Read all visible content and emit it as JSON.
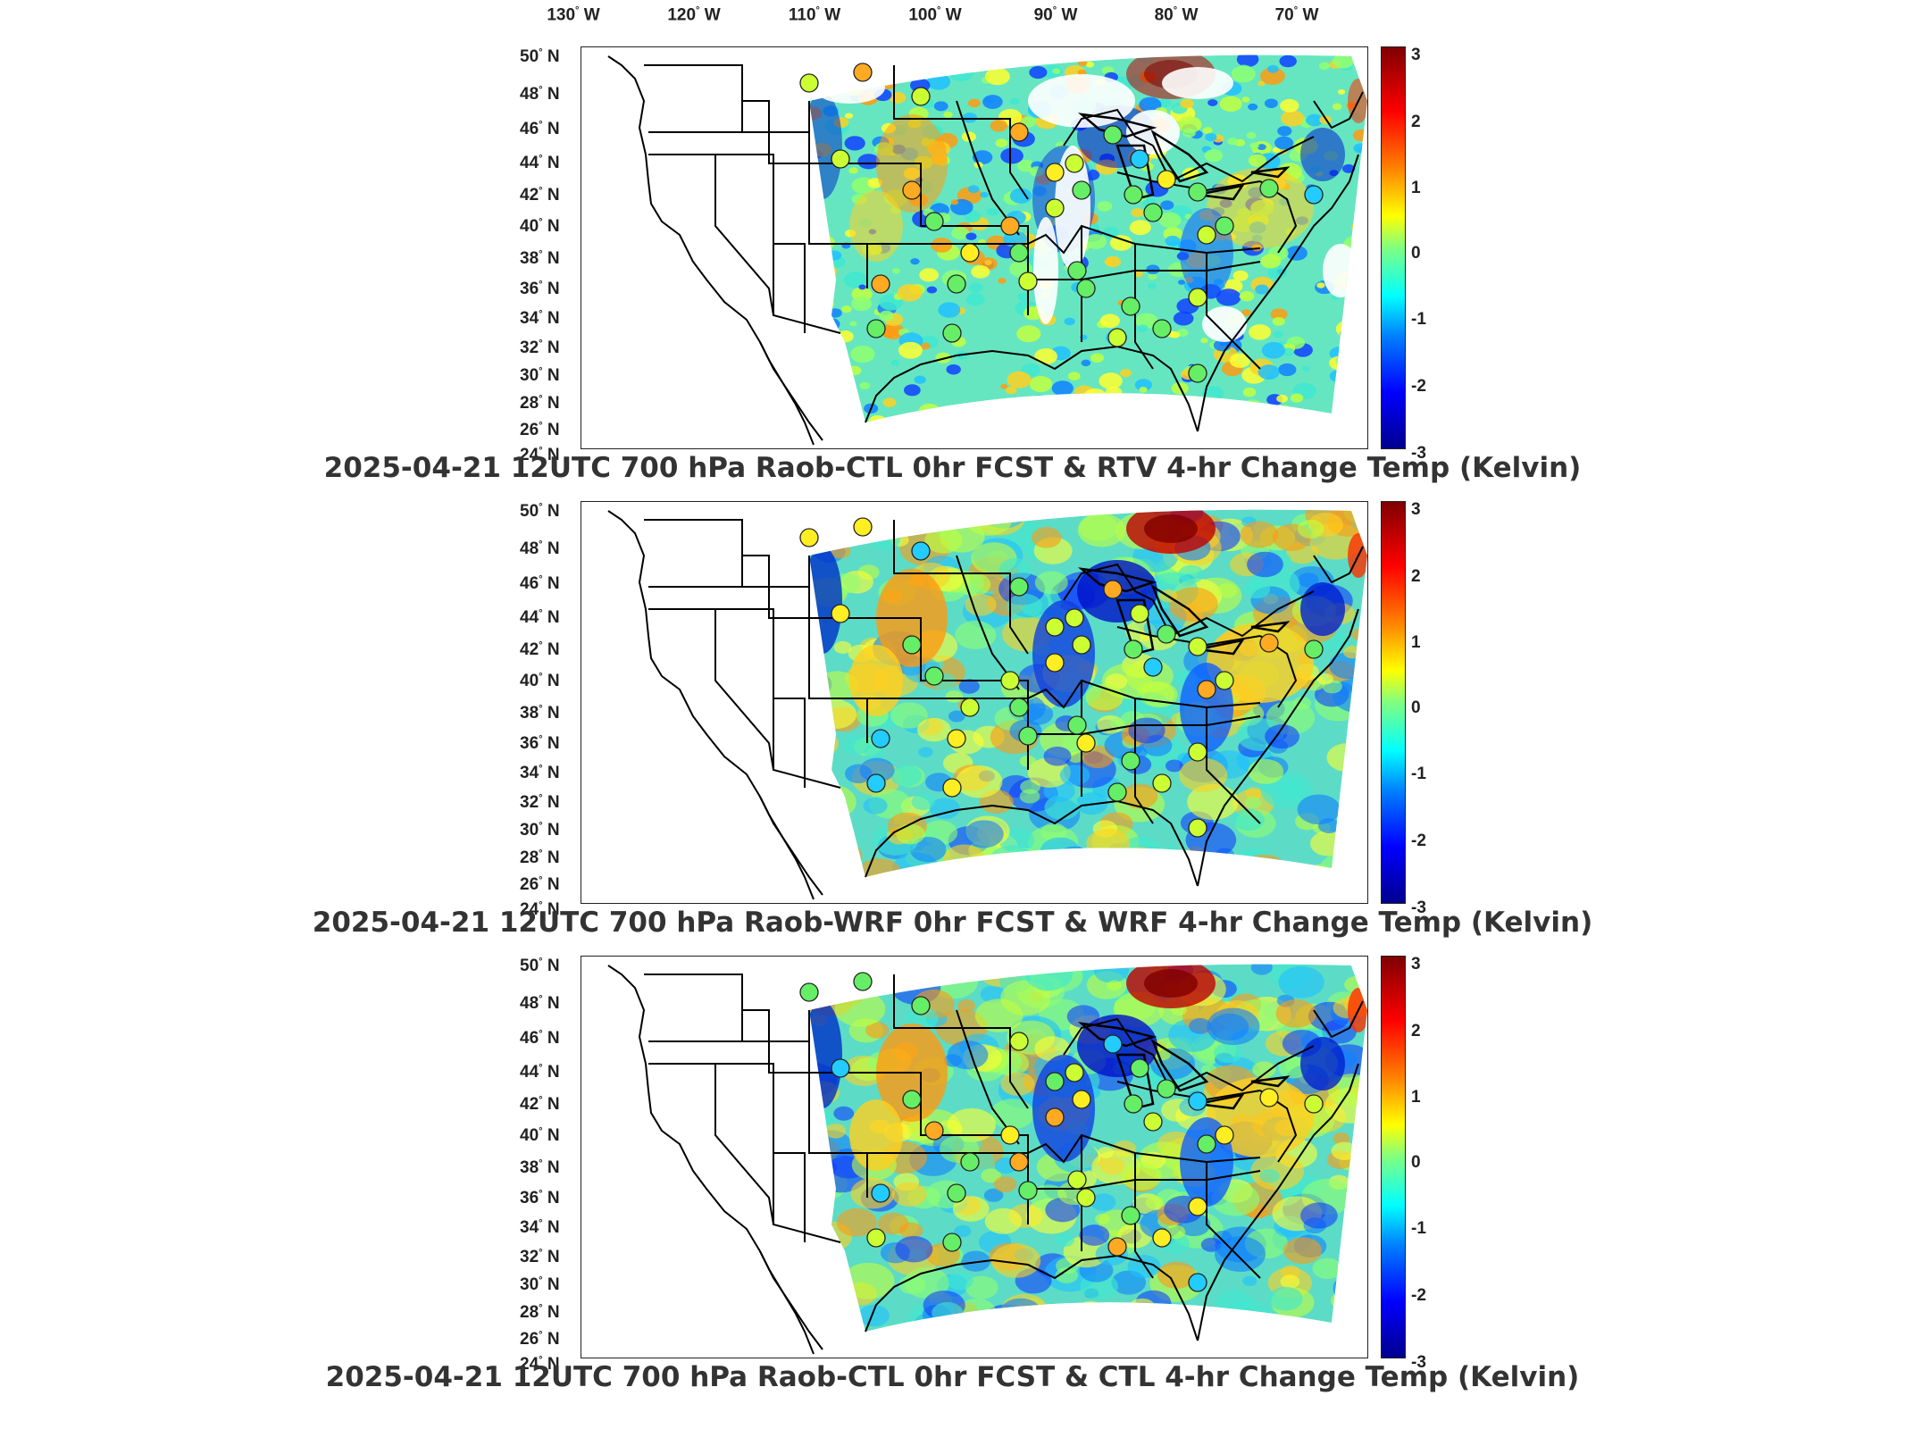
{
  "lon_labels": [
    "130",
    "120",
    "110",
    "100",
    "90",
    "80",
    "70"
  ],
  "lon_suffix": "W",
  "lat_labels": [
    "50",
    "48",
    "46",
    "44",
    "42",
    "40",
    "38",
    "36",
    "34",
    "32",
    "30",
    "28",
    "26",
    "24"
  ],
  "lat_suffix": "N",
  "colorbar_ticks": [
    "3",
    "2",
    "1",
    "0",
    "-1",
    "-2",
    "-3"
  ],
  "colorbar_range": [
    -3,
    3
  ],
  "colormap": "jet",
  "panels": [
    {
      "title": "2025-04-21 12UTC 700 hPa Raob-CTL 0hr FCST & RTV 4-hr Change Temp (Kelvin)"
    },
    {
      "title": "2025-04-21 12UTC 700 hPa Raob-WRF 0hr FCST & WRF 4-hr Change Temp (Kelvin)"
    },
    {
      "title": "2025-04-21 12UTC 700 hPa Raob-CTL 0hr FCST & CTL 4-hr Change Temp (Kelvin)"
    }
  ],
  "colors": {
    "border": "#000000",
    "warm": "#ff3a00",
    "cold": "#0030d0",
    "neutral": "#48e0b0"
  }
}
